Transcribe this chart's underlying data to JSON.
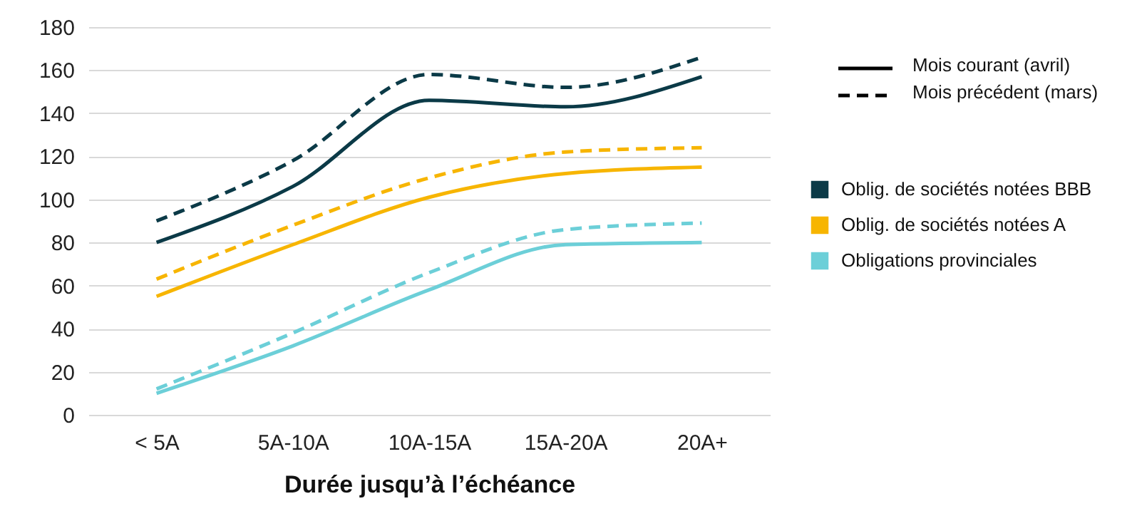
{
  "chart_data": {
    "type": "line",
    "xlabel": "Durée jusqu’à l’échéance",
    "categories": [
      "< 5A",
      "5A-10A",
      "10A-15A",
      "15A-20A",
      "20A+"
    ],
    "ylim": [
      0,
      180
    ],
    "yticks": [
      0,
      20,
      40,
      60,
      80,
      100,
      120,
      140,
      160,
      180
    ],
    "grid": "y",
    "legend": "right",
    "marker": "none",
    "annotations": [
      "Mois courant (avril)",
      "Mois précédent (mars)"
    ],
    "series": [
      {
        "name": "Oblig. de sociétés notées BBB",
        "color": "#0b3a47",
        "line_style": "solid",
        "values": [
          80,
          106,
          146,
          143,
          157
        ]
      },
      {
        "color": "#0b3a47",
        "line_style": "dashed",
        "values": [
          90,
          118,
          158,
          152,
          166
        ]
      },
      {
        "name": "Oblig. de sociétés notées A",
        "color": "#f7b500",
        "line_style": "solid",
        "values": [
          55,
          79,
          101,
          112,
          115
        ]
      },
      {
        "color": "#f7b500",
        "line_style": "dashed",
        "values": [
          63,
          88,
          110,
          122,
          124
        ]
      },
      {
        "name": "Obligations provinciales",
        "color": "#6ccfd8",
        "line_style": "solid",
        "values": [
          10,
          32,
          58,
          79,
          80
        ]
      },
      {
        "color": "#6ccfd8",
        "line_style": "dashed",
        "values": [
          12,
          38,
          66,
          86,
          89
        ]
      }
    ]
  }
}
